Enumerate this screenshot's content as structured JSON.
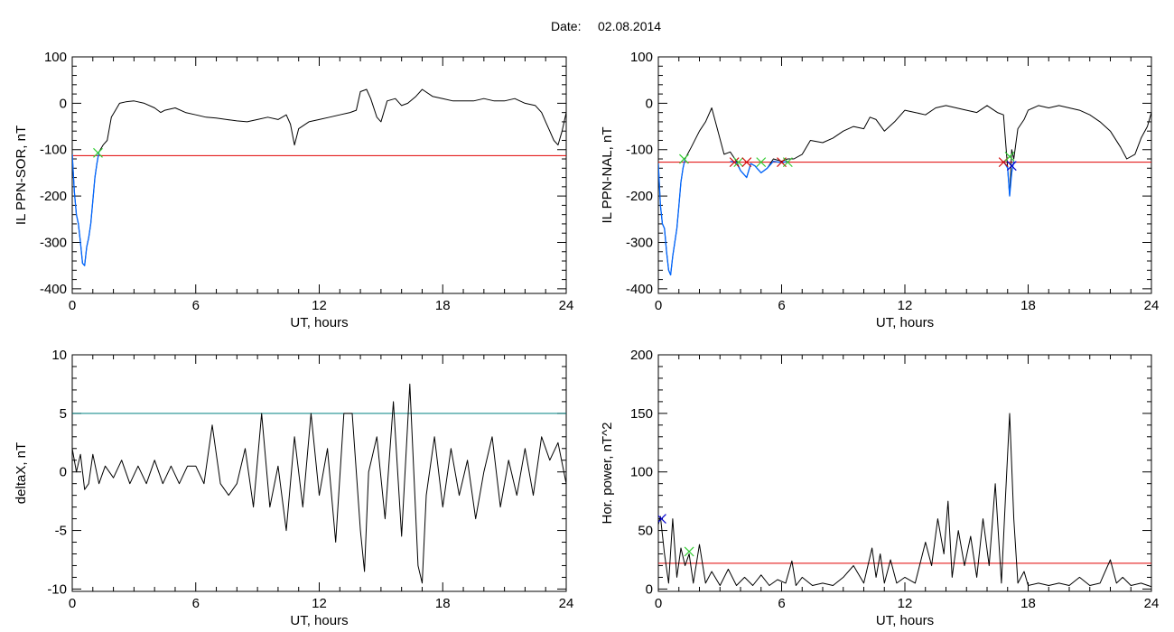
{
  "header": {
    "date_label": "Date:",
    "date_value": "02.08.2014"
  },
  "colors": {
    "trace": "#000000",
    "threshold_red": "#e00000",
    "threshold_teal": "#008080",
    "event_blue": "#0066ff",
    "marker_green": "#33cc33",
    "marker_red": "#d00000",
    "marker_blue": "#0000cc"
  },
  "chart_data": [
    {
      "id": "sor",
      "type": "line",
      "ylabel": "IL PPN-SOR, nT",
      "xlabel": "UT, hours",
      "xlim": [
        0,
        24
      ],
      "ylim": [
        -410,
        100
      ],
      "xticks": [
        0,
        6,
        12,
        18,
        24
      ],
      "yticks": [
        -400,
        -300,
        -200,
        -100,
        0,
        100
      ],
      "threshold": -113,
      "threshold_color": "threshold_red",
      "series": [
        {
          "x": [
            0,
            0.1,
            0.2,
            0.3,
            0.4,
            0.5,
            0.6,
            0.7,
            0.8,
            0.9,
            1.0,
            1.1,
            1.2,
            1.3,
            1.5,
            1.7,
            1.9,
            2.1,
            2.3,
            2.6,
            3.0,
            3.5,
            4.0,
            4.3,
            4.5,
            5.0,
            5.5,
            6.0,
            6.5,
            7.0,
            7.5,
            8.0,
            8.5,
            9.0,
            9.5,
            10.0,
            10.4,
            10.6,
            10.8,
            11.0,
            11.5,
            12.0,
            12.5,
            13.0,
            13.5,
            13.8,
            14.0,
            14.3,
            14.5,
            14.8,
            15.0,
            15.3,
            15.7,
            16.0,
            16.3,
            16.7,
            17.0,
            17.5,
            18.0,
            18.5,
            19.0,
            19.5,
            20.0,
            20.5,
            21.0,
            21.5,
            22.0,
            22.5,
            22.8,
            23.0,
            23.2,
            23.4,
            23.6,
            23.8,
            24.0
          ],
          "y": [
            -110,
            -190,
            -240,
            -260,
            -300,
            -345,
            -350,
            -310,
            -290,
            -260,
            -210,
            -160,
            -130,
            -105,
            -90,
            -80,
            -30,
            -15,
            0,
            3,
            5,
            0,
            -10,
            -20,
            -15,
            -10,
            -20,
            -25,
            -30,
            -32,
            -35,
            -38,
            -40,
            -35,
            -30,
            -35,
            -25,
            -45,
            -90,
            -55,
            -40,
            -35,
            -30,
            -25,
            -20,
            -15,
            25,
            30,
            10,
            -30,
            -40,
            5,
            10,
            -5,
            0,
            15,
            30,
            15,
            10,
            5,
            5,
            5,
            10,
            5,
            5,
            10,
            0,
            -5,
            -20,
            -40,
            -60,
            -80,
            -90,
            -60,
            -20
          ]
        },
        {
          "x": [
            0,
            0.1,
            0.2,
            0.3,
            0.4,
            0.5,
            0.6,
            0.7,
            0.8,
            0.9,
            1.0,
            1.1,
            1.2,
            1.3
          ],
          "y": [
            -110,
            -190,
            -240,
            -260,
            -300,
            -345,
            -350,
            -310,
            -290,
            -260,
            -210,
            -160,
            -130,
            -105
          ],
          "color": "event_blue"
        }
      ],
      "markers": [
        {
          "x": 1.25,
          "y": -107,
          "color": "marker_green"
        }
      ]
    },
    {
      "id": "nal",
      "type": "line",
      "ylabel": "IL PPN-NAL, nT",
      "xlabel": "UT, hours",
      "xlim": [
        0,
        24
      ],
      "ylim": [
        -410,
        100
      ],
      "xticks": [
        0,
        6,
        12,
        18,
        24
      ],
      "yticks": [
        -400,
        -300,
        -200,
        -100,
        0,
        100
      ],
      "threshold": -127,
      "threshold_color": "threshold_red",
      "series": [
        {
          "x": [
            0,
            0.1,
            0.2,
            0.3,
            0.4,
            0.5,
            0.6,
            0.7,
            0.8,
            0.9,
            1.0,
            1.1,
            1.2,
            1.3,
            1.6,
            2.0,
            2.3,
            2.6,
            2.9,
            3.2,
            3.5,
            3.8,
            4.0,
            4.3,
            4.5,
            4.7,
            5.0,
            5.3,
            5.6,
            6.0,
            6.3,
            6.6,
            7.0,
            7.4,
            8.0,
            8.5,
            9.0,
            9.5,
            10.0,
            10.3,
            10.6,
            11.0,
            11.5,
            12.0,
            12.5,
            13.0,
            13.5,
            14.0,
            14.5,
            15.0,
            15.5,
            16.0,
            16.5,
            16.8,
            17.0,
            17.1,
            17.2,
            17.3,
            17.5,
            17.8,
            18.0,
            18.5,
            19.0,
            19.5,
            20.0,
            20.5,
            21.0,
            21.5,
            22.0,
            22.5,
            22.8,
            23.2,
            23.5,
            23.8,
            24.0
          ],
          "y": [
            -130,
            -220,
            -260,
            -270,
            -320,
            -360,
            -370,
            -330,
            -300,
            -270,
            -220,
            -170,
            -140,
            -120,
            -95,
            -60,
            -40,
            -10,
            -60,
            -110,
            -105,
            -125,
            -145,
            -160,
            -130,
            -135,
            -150,
            -140,
            -120,
            -125,
            -120,
            -120,
            -110,
            -80,
            -85,
            -75,
            -60,
            -50,
            -55,
            -30,
            -35,
            -60,
            -40,
            -15,
            -20,
            -25,
            -10,
            -5,
            -10,
            -15,
            -20,
            -5,
            -20,
            -25,
            -140,
            -200,
            -100,
            -120,
            -55,
            -35,
            -15,
            -5,
            -10,
            -5,
            -10,
            -15,
            -25,
            -40,
            -60,
            -95,
            -120,
            -110,
            -75,
            -50,
            -20
          ]
        },
        {
          "x": [
            0,
            0.1,
            0.2,
            0.3,
            0.4,
            0.5,
            0.6,
            0.7,
            0.8,
            0.9,
            1.0,
            1.1,
            1.2,
            1.3
          ],
          "y": [
            -130,
            -220,
            -260,
            -270,
            -320,
            -360,
            -370,
            -330,
            -300,
            -270,
            -220,
            -170,
            -140,
            -120
          ],
          "color": "event_blue"
        },
        {
          "x": [
            3.5,
            3.8,
            4.0,
            4.3,
            4.5,
            4.7,
            5.0,
            5.3,
            5.6,
            6.0,
            6.3
          ],
          "y": [
            -125,
            -128,
            -145,
            -160,
            -130,
            -135,
            -150,
            -140,
            -125,
            -128,
            -125
          ],
          "color": "event_blue"
        },
        {
          "x": [
            16.8,
            17.0,
            17.1,
            17.2,
            17.3
          ],
          "y": [
            -125,
            -140,
            -200,
            -150,
            -125
          ],
          "color": "event_blue"
        }
      ],
      "markers": [
        {
          "x": 1.25,
          "y": -120,
          "color": "marker_green"
        },
        {
          "x": 3.7,
          "y": -127,
          "color": "marker_red"
        },
        {
          "x": 3.9,
          "y": -127,
          "color": "marker_green"
        },
        {
          "x": 4.3,
          "y": -127,
          "color": "marker_red"
        },
        {
          "x": 5.0,
          "y": -127,
          "color": "marker_green"
        },
        {
          "x": 6.0,
          "y": -127,
          "color": "marker_red"
        },
        {
          "x": 6.3,
          "y": -127,
          "color": "marker_green"
        },
        {
          "x": 16.8,
          "y": -127,
          "color": "marker_red"
        },
        {
          "x": 17.1,
          "y": -115,
          "color": "marker_green"
        },
        {
          "x": 17.2,
          "y": -135,
          "color": "marker_blue"
        }
      ]
    },
    {
      "id": "deltax",
      "type": "line",
      "ylabel": "deltaX, nT",
      "xlabel": "UT, hours",
      "xlim": [
        0,
        24
      ],
      "ylim": [
        -10.2,
        10
      ],
      "xticks": [
        0,
        6,
        12,
        18,
        24
      ],
      "yticks": [
        -10,
        -5,
        0,
        5,
        10
      ],
      "threshold": 5,
      "threshold_color": "threshold_teal",
      "series": [
        {
          "x": [
            0,
            0.2,
            0.4,
            0.6,
            0.8,
            1.0,
            1.3,
            1.6,
            2.0,
            2.4,
            2.8,
            3.2,
            3.6,
            4.0,
            4.4,
            4.8,
            5.2,
            5.6,
            6.0,
            6.4,
            6.8,
            7.2,
            7.6,
            8.0,
            8.4,
            8.8,
            9.2,
            9.6,
            10.0,
            10.4,
            10.8,
            11.2,
            11.6,
            12.0,
            12.4,
            12.8,
            13.2,
            13.6,
            14.0,
            14.2,
            14.4,
            14.8,
            15.2,
            15.6,
            16.0,
            16.4,
            16.8,
            17.0,
            17.2,
            17.6,
            18.0,
            18.4,
            18.8,
            19.2,
            19.6,
            20.0,
            20.4,
            20.8,
            21.2,
            21.6,
            22.0,
            22.4,
            22.8,
            23.2,
            23.6,
            24.0
          ],
          "y": [
            2,
            0,
            1.5,
            -1.5,
            -1,
            1.5,
            -1,
            0.5,
            -0.5,
            1,
            -1,
            0.5,
            -1,
            1,
            -1,
            0.5,
            -1,
            0.5,
            0.5,
            -1,
            4,
            -1,
            -2,
            -1,
            2,
            -3,
            5,
            -3,
            0.5,
            -5,
            3,
            -3,
            5,
            -2,
            2,
            -6,
            5,
            5,
            -5,
            -8.5,
            0,
            3,
            -4,
            6,
            -5.5,
            7.5,
            -8,
            -9.5,
            -2,
            3,
            -3,
            2,
            -2,
            1,
            -4,
            0,
            3,
            -3,
            1,
            -2,
            2,
            -2,
            3,
            1,
            2.5,
            -1
          ]
        }
      ]
    },
    {
      "id": "hpower",
      "type": "line",
      "ylabel": "Hor. power, nT^2",
      "xlabel": "UT, hours",
      "xlim": [
        0,
        24
      ],
      "ylim": [
        -2,
        200
      ],
      "xticks": [
        0,
        6,
        12,
        18,
        24
      ],
      "yticks": [
        0,
        50,
        100,
        150,
        200
      ],
      "threshold": 22,
      "threshold_color": "threshold_red",
      "series": [
        {
          "x": [
            0,
            0.1,
            0.3,
            0.5,
            0.7,
            0.9,
            1.1,
            1.3,
            1.5,
            1.7,
            2.0,
            2.3,
            2.6,
            3.0,
            3.4,
            3.8,
            4.2,
            4.6,
            5.0,
            5.4,
            5.8,
            6.2,
            6.5,
            6.7,
            7.0,
            7.5,
            8.0,
            8.5,
            9.0,
            9.5,
            10.0,
            10.4,
            10.6,
            10.8,
            11.0,
            11.3,
            11.6,
            12.0,
            12.5,
            13.0,
            13.3,
            13.6,
            13.9,
            14.1,
            14.3,
            14.6,
            14.9,
            15.2,
            15.5,
            15.8,
            16.1,
            16.4,
            16.7,
            16.9,
            17.1,
            17.3,
            17.5,
            17.8,
            18.0,
            18.5,
            19.0,
            19.5,
            20.0,
            20.5,
            21.0,
            21.5,
            22.0,
            22.3,
            22.6,
            23.0,
            23.5,
            24.0
          ],
          "y": [
            55,
            62,
            30,
            5,
            60,
            10,
            35,
            20,
            30,
            5,
            38,
            5,
            15,
            3,
            17,
            3,
            10,
            3,
            12,
            3,
            8,
            5,
            24,
            3,
            10,
            3,
            5,
            3,
            10,
            20,
            5,
            35,
            10,
            30,
            5,
            25,
            5,
            10,
            5,
            40,
            20,
            60,
            30,
            75,
            10,
            50,
            20,
            45,
            10,
            60,
            20,
            90,
            5,
            80,
            150,
            60,
            5,
            15,
            3,
            5,
            3,
            5,
            3,
            10,
            3,
            5,
            25,
            5,
            10,
            3,
            5,
            2
          ]
        }
      ],
      "markers": [
        {
          "x": 0.15,
          "y": 60,
          "color": "marker_blue"
        },
        {
          "x": 1.5,
          "y": 32,
          "color": "marker_green"
        }
      ]
    }
  ]
}
